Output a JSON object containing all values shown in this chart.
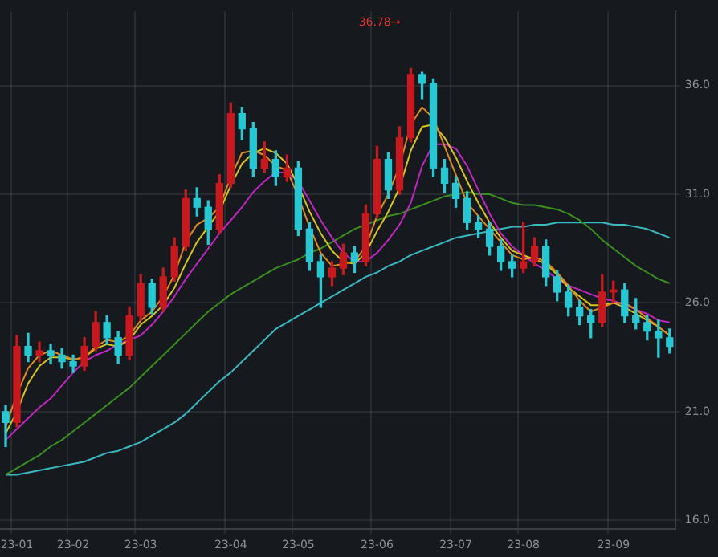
{
  "chart_data": {
    "type": "candlestick",
    "categories": [
      null,
      "23-01",
      null,
      null,
      null,
      null,
      "23-02",
      null,
      null,
      null,
      null,
      null,
      "23-03",
      null,
      null,
      null,
      null,
      null,
      null,
      null,
      "23-04",
      null,
      null,
      null,
      null,
      null,
      "23-05",
      null,
      null,
      null,
      null,
      null,
      null,
      "23-06",
      null,
      null,
      null,
      null,
      null,
      null,
      "23-07",
      null,
      null,
      null,
      null,
      null,
      "23-08",
      null,
      null,
      null,
      null,
      null,
      null,
      null,
      "23-09",
      null,
      null,
      null,
      null,
      null
    ],
    "ohlc": [
      [
        21.0,
        21.3,
        19.4,
        20.5
      ],
      [
        20.5,
        24.5,
        20.3,
        24.0
      ],
      [
        24.0,
        24.6,
        23.3,
        23.6
      ],
      [
        23.6,
        24.2,
        23.3,
        23.8
      ],
      [
        23.8,
        24.1,
        23.2,
        23.6
      ],
      [
        23.6,
        23.9,
        23.0,
        23.3
      ],
      [
        23.3,
        23.6,
        22.8,
        23.1
      ],
      [
        23.1,
        24.4,
        22.9,
        24.0
      ],
      [
        24.0,
        25.6,
        23.8,
        25.1
      ],
      [
        25.1,
        25.4,
        24.1,
        24.4
      ],
      [
        24.4,
        24.7,
        23.2,
        23.6
      ],
      [
        23.6,
        25.8,
        23.4,
        25.4
      ],
      [
        25.4,
        27.3,
        25.2,
        26.9
      ],
      [
        26.9,
        27.1,
        25.5,
        25.8
      ],
      [
        25.8,
        27.6,
        25.6,
        27.2
      ],
      [
        27.2,
        29.0,
        27.0,
        28.6
      ],
      [
        28.6,
        31.2,
        28.4,
        30.8
      ],
      [
        30.8,
        31.3,
        30.0,
        30.4
      ],
      [
        30.4,
        30.7,
        28.7,
        29.4
      ],
      [
        29.4,
        31.9,
        29.2,
        31.5
      ],
      [
        31.5,
        35.2,
        31.3,
        34.7
      ],
      [
        34.7,
        35.0,
        33.5,
        34.0
      ],
      [
        34.0,
        34.3,
        31.8,
        32.2
      ],
      [
        32.2,
        33.4,
        32.0,
        32.6
      ],
      [
        32.6,
        33.0,
        31.4,
        31.8
      ],
      [
        31.8,
        32.8,
        31.6,
        32.2
      ],
      [
        32.2,
        32.5,
        29.1,
        29.4
      ],
      [
        29.4,
        29.7,
        27.5,
        27.9
      ],
      [
        27.9,
        28.2,
        25.8,
        27.2
      ],
      [
        27.2,
        27.9,
        26.8,
        27.6
      ],
      [
        27.6,
        28.7,
        27.3,
        28.3
      ],
      [
        28.3,
        28.6,
        27.4,
        27.9
      ],
      [
        27.9,
        30.5,
        27.7,
        30.1
      ],
      [
        30.1,
        33.2,
        29.9,
        32.6
      ],
      [
        32.6,
        32.9,
        30.8,
        31.2
      ],
      [
        31.2,
        34.1,
        31.0,
        33.6
      ],
      [
        33.6,
        36.78,
        33.4,
        36.5
      ],
      [
        36.5,
        36.6,
        35.4,
        36.1
      ],
      [
        36.1,
        36.3,
        31.8,
        32.2
      ],
      [
        32.2,
        32.6,
        31.1,
        31.5
      ],
      [
        31.5,
        31.8,
        30.4,
        30.8
      ],
      [
        30.8,
        31.1,
        29.4,
        29.7
      ],
      [
        29.7,
        30.0,
        29.0,
        29.4
      ],
      [
        29.4,
        29.7,
        28.2,
        28.6
      ],
      [
        28.6,
        28.9,
        27.5,
        27.9
      ],
      [
        27.9,
        28.2,
        27.2,
        27.6
      ],
      [
        27.6,
        29.7,
        27.4,
        27.9
      ],
      [
        27.9,
        29.0,
        27.7,
        28.6
      ],
      [
        28.6,
        28.9,
        26.8,
        27.2
      ],
      [
        27.2,
        27.5,
        26.1,
        26.5
      ],
      [
        26.5,
        26.8,
        25.4,
        25.8
      ],
      [
        25.8,
        26.1,
        25.0,
        25.4
      ],
      [
        25.4,
        25.7,
        24.4,
        25.1
      ],
      [
        25.1,
        27.3,
        24.9,
        26.5
      ],
      [
        26.5,
        27.0,
        26.0,
        26.6
      ],
      [
        26.6,
        26.9,
        25.1,
        25.4
      ],
      [
        25.4,
        26.2,
        24.8,
        25.1
      ],
      [
        25.1,
        25.4,
        24.3,
        24.7
      ],
      [
        24.7,
        25.2,
        23.5,
        24.4
      ],
      [
        24.4,
        24.8,
        23.7,
        24.0
      ]
    ],
    "colors": [
      "#27c7d4",
      "#c8191e",
      "#27c7d4",
      "#c8191e",
      "#27c7d4",
      "#27c7d4",
      "#27c7d4",
      "#c8191e",
      "#c8191e",
      "#27c7d4",
      "#27c7d4",
      "#c8191e",
      "#c8191e",
      "#27c7d4",
      "#c8191e",
      "#c8191e",
      "#c8191e",
      "#27c7d4",
      "#27c7d4",
      "#c8191e",
      "#c8191e",
      "#27c7d4",
      "#27c7d4",
      "#c8191e",
      "#27c7d4",
      "#c8191e",
      "#27c7d4",
      "#27c7d4",
      "#27c7d4",
      "#c8191e",
      "#c8191e",
      "#27c7d4",
      "#c8191e",
      "#c8191e",
      "#27c7d4",
      "#c8191e",
      "#c8191e",
      "#27c7d4",
      "#27c7d4",
      "#27c7d4",
      "#27c7d4",
      "#27c7d4",
      "#27c7d4",
      "#27c7d4",
      "#27c7d4",
      "#27c7d4",
      "#c8191e",
      "#c8191e",
      "#27c7d4",
      "#27c7d4",
      "#27c7d4",
      "#27c7d4",
      "#27c7d4",
      "#c8191e",
      "#c8191e",
      "#27c7d4",
      "#27c7d4",
      "#27c7d4",
      "#27c7d4",
      "#27c7d4"
    ],
    "series": [
      {
        "type": "line",
        "color": "#e0891e",
        "values": [
          20.3,
          21.8,
          23.0,
          23.6,
          23.8,
          23.6,
          23.4,
          23.5,
          24.0,
          24.3,
          24.2,
          24.5,
          25.2,
          25.6,
          26.3,
          27.3,
          28.8,
          29.6,
          29.9,
          30.4,
          31.8,
          32.9,
          33.0,
          32.8,
          32.3,
          32.1,
          30.9,
          29.5,
          28.3,
          27.7,
          27.8,
          27.9,
          28.6,
          30.0,
          31.0,
          32.3,
          34.2,
          35.0,
          34.5,
          33.2,
          31.9,
          30.6,
          30.0,
          29.4,
          28.8,
          28.2,
          28.0,
          28.1,
          27.9,
          27.4,
          26.8,
          26.1,
          25.6,
          25.8,
          26.0,
          26.0,
          25.7,
          25.3,
          24.9,
          24.5
        ]
      },
      {
        "type": "line",
        "color": "#d8c41e",
        "values": [
          20.0,
          21.0,
          22.3,
          23.1,
          23.5,
          23.5,
          23.4,
          23.5,
          23.9,
          24.1,
          24.0,
          24.3,
          25.0,
          25.4,
          25.9,
          26.7,
          27.8,
          28.8,
          29.5,
          30.2,
          31.4,
          32.4,
          32.9,
          33.1,
          32.9,
          32.4,
          31.4,
          30.2,
          29.2,
          28.4,
          27.9,
          27.8,
          28.3,
          29.3,
          30.2,
          31.3,
          33.0,
          34.1,
          34.2,
          33.6,
          32.7,
          31.6,
          30.6,
          29.7,
          29.0,
          28.4,
          28.2,
          28.0,
          27.8,
          27.3,
          26.7,
          26.3,
          25.9,
          25.9,
          26.0,
          25.8,
          25.5,
          25.2,
          24.9,
          24.5
        ]
      },
      {
        "type": "line",
        "color": "#c026c0",
        "values": [
          19.7,
          20.2,
          20.7,
          21.2,
          21.6,
          22.2,
          22.8,
          23.3,
          23.6,
          23.8,
          24.1,
          24.3,
          24.5,
          25.0,
          25.6,
          26.3,
          27.1,
          27.8,
          28.5,
          29.2,
          29.8,
          30.4,
          31.1,
          31.6,
          32.0,
          32.0,
          31.6,
          30.7,
          29.8,
          29.0,
          28.3,
          27.9,
          27.9,
          28.3,
          28.9,
          29.6,
          30.6,
          32.3,
          33.3,
          33.3,
          33.1,
          32.3,
          31.2,
          30.1,
          29.2,
          28.6,
          28.2,
          27.8,
          27.5,
          27.1,
          26.8,
          26.6,
          26.4,
          26.2,
          26.1,
          25.9,
          25.7,
          25.5,
          25.2,
          25.1
        ]
      },
      {
        "type": "line",
        "color": "#3a8f1e",
        "values": [
          18.1,
          18.4,
          18.7,
          19.0,
          19.4,
          19.7,
          20.1,
          20.5,
          20.9,
          21.3,
          21.7,
          22.1,
          22.6,
          23.1,
          23.6,
          24.1,
          24.6,
          25.1,
          25.6,
          26.0,
          26.4,
          26.7,
          27.0,
          27.3,
          27.6,
          27.8,
          28.0,
          28.3,
          28.5,
          28.8,
          29.1,
          29.4,
          29.6,
          29.8,
          30.0,
          30.1,
          30.3,
          30.5,
          30.7,
          30.9,
          31.0,
          31.1,
          31.0,
          31.0,
          30.8,
          30.6,
          30.5,
          30.5,
          30.4,
          30.3,
          30.1,
          29.8,
          29.4,
          28.9,
          28.5,
          28.1,
          27.7,
          27.4,
          27.1,
          26.9
        ]
      },
      {
        "type": "line",
        "color": "#3ab8c0",
        "values": [
          18.1,
          18.1,
          18.2,
          18.3,
          18.4,
          18.5,
          18.6,
          18.7,
          18.9,
          19.1,
          19.2,
          19.4,
          19.6,
          19.9,
          20.2,
          20.5,
          20.9,
          21.4,
          21.9,
          22.4,
          22.8,
          23.3,
          23.8,
          24.3,
          24.8,
          25.1,
          25.4,
          25.7,
          26.0,
          26.3,
          26.6,
          26.9,
          27.2,
          27.4,
          27.7,
          27.9,
          28.2,
          28.4,
          28.6,
          28.8,
          29.0,
          29.1,
          29.2,
          29.3,
          29.4,
          29.5,
          29.5,
          29.6,
          29.6,
          29.7,
          29.7,
          29.7,
          29.7,
          29.7,
          29.6,
          29.6,
          29.5,
          29.4,
          29.2,
          29.0
        ]
      }
    ],
    "annotations": [
      "36.78→"
    ],
    "ylim": [
      15.6,
      39.4
    ],
    "yticks": [
      {
        "value": 16,
        "label": "16.0"
      },
      {
        "value": 21,
        "label": "21.0"
      },
      {
        "value": 26,
        "label": "26.0"
      },
      {
        "value": 31,
        "label": "31.0"
      },
      {
        "value": 36,
        "label": "36.0"
      }
    ],
    "grid": true,
    "legend": false,
    "marker": "none",
    "line_style": "solid"
  }
}
